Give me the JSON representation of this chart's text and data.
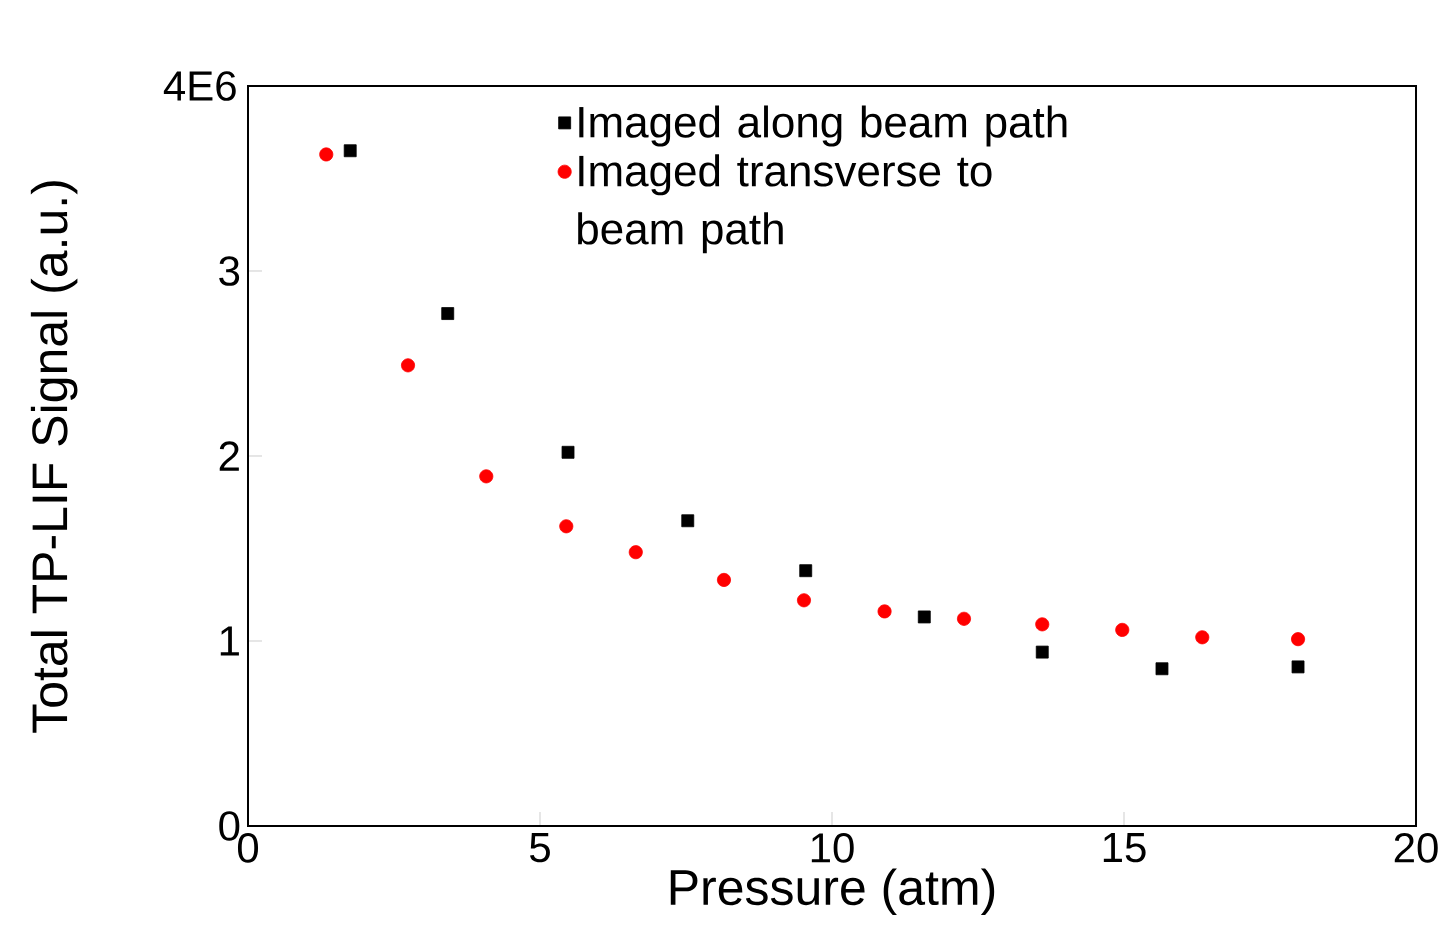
{
  "chart_data": {
    "type": "scatter",
    "xlabel": "Pressure (atm)",
    "ylabel": "Total TP-LIF Signal (a.u.)",
    "xlim": [
      0,
      20
    ],
    "xticks": [
      0,
      5,
      10,
      15,
      20
    ],
    "ylim": [
      0,
      4
    ],
    "yticks": [
      0,
      1,
      2,
      3,
      {
        "value": 4,
        "label": null
      }
    ],
    "annotations": [
      "4E6"
    ],
    "legend": "top right",
    "grid": false,
    "series": [
      {
        "name": "Imaged along beam path",
        "color": "#000000",
        "marker": "square",
        "x": [
          1.75,
          3.42,
          5.48,
          7.53,
          9.55,
          11.58,
          13.6,
          15.65,
          17.98
        ],
        "values": [
          3.65,
          2.77,
          2.02,
          1.65,
          1.38,
          1.13,
          0.94,
          0.85,
          0.86
        ]
      },
      {
        "name": "Imaged transverse to beam path",
        "color": "#ff0000",
        "marker": "circle",
        "x": [
          1.34,
          2.74,
          4.08,
          5.45,
          6.64,
          8.15,
          9.52,
          10.9,
          12.26,
          13.6,
          14.97,
          16.34,
          17.98
        ],
        "values": [
          3.63,
          2.49,
          1.89,
          1.62,
          1.48,
          1.33,
          1.22,
          1.16,
          1.12,
          1.09,
          1.06,
          1.02,
          1.01
        ]
      }
    ]
  }
}
